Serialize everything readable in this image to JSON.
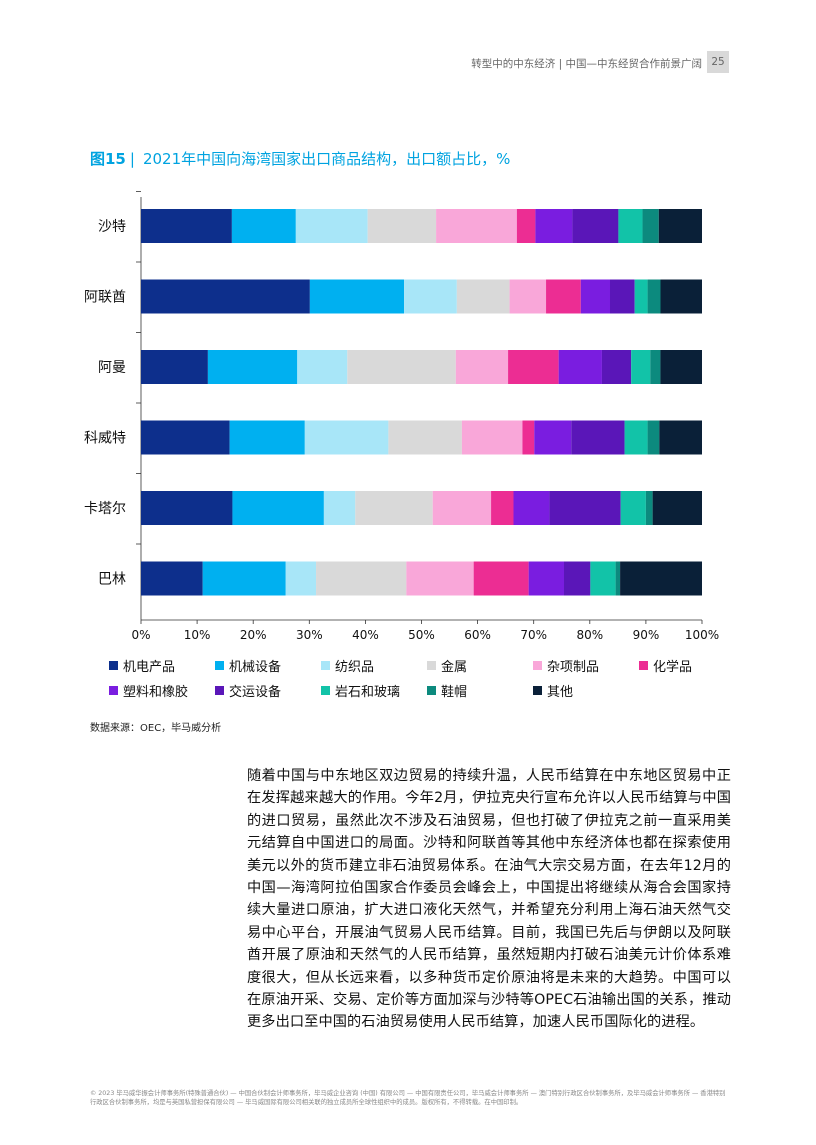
{
  "header": {
    "running_title": "转型中的中东经济 | 中国—中东经贸合作前景广阔",
    "page_number": "25"
  },
  "figure": {
    "label": "图15",
    "separator": "|",
    "title": "2021年中国向海湾国家出口商品结构，出口额占比，%"
  },
  "chart_data": {
    "type": "bar",
    "orientation": "horizontal",
    "stacked": true,
    "categories": [
      "沙特",
      "阿联酋",
      "阿曼",
      "科威特",
      "卡塔尔",
      "巴林"
    ],
    "xlim": [
      0,
      100
    ],
    "xticks": [
      "0%",
      "10%",
      "20%",
      "30%",
      "40%",
      "50%",
      "60%",
      "70%",
      "80%",
      "90%",
      "100%"
    ],
    "grid": false,
    "legend_position": "bottom",
    "series": [
      {
        "name": "机电产品",
        "color": "#0d2f8c",
        "values": [
          16.2,
          30.1,
          11.9,
          15.8,
          16.3,
          11.0
        ]
      },
      {
        "name": "机械设备",
        "color": "#00b0f0",
        "values": [
          11.4,
          16.8,
          15.9,
          13.4,
          16.3,
          14.8
        ]
      },
      {
        "name": "纺织品",
        "color": "#a8e6f8",
        "values": [
          12.8,
          9.4,
          8.9,
          14.9,
          5.6,
          5.4
        ]
      },
      {
        "name": "金属",
        "color": "#d9d9d9",
        "values": [
          12.2,
          9.4,
          19.3,
          13.1,
          13.8,
          16.1
        ]
      },
      {
        "name": "杂项制品",
        "color": "#f9a7d9",
        "values": [
          14.4,
          6.5,
          9.3,
          10.8,
          10.4,
          12.0
        ]
      },
      {
        "name": "化学品",
        "color": "#ec2d93",
        "values": [
          3.3,
          6.2,
          9.0,
          2.1,
          4.0,
          9.8
        ]
      },
      {
        "name": "塑料和橡胶",
        "color": "#7a1de0",
        "values": [
          6.6,
          5.2,
          7.7,
          6.6,
          6.4,
          6.3
        ]
      },
      {
        "name": "交运设备",
        "color": "#5a16b8",
        "values": [
          8.2,
          4.4,
          5.2,
          9.5,
          12.7,
          4.7
        ]
      },
      {
        "name": "岩石和玻璃",
        "color": "#12c3a8",
        "values": [
          4.3,
          2.3,
          3.4,
          4.1,
          4.5,
          4.5
        ]
      },
      {
        "name": "鞋帽",
        "color": "#0c8a7e",
        "values": [
          2.9,
          2.3,
          1.8,
          2.1,
          1.2,
          0.8
        ]
      },
      {
        "name": "其他",
        "color": "#0a2038",
        "values": [
          7.7,
          7.4,
          7.4,
          7.6,
          8.8,
          14.6
        ]
      }
    ]
  },
  "source": "数据来源：OEC，毕马威分析",
  "body_text": "随着中国与中东地区双边贸易的持续升温，人民币结算在中东地区贸易中正在发挥越来越大的作用。今年2月，伊拉克央行宣布允许以人民币结算与中国的进口贸易，虽然此次不涉及石油贸易，但也打破了伊拉克之前一直采用美元结算自中国进口的局面。沙特和阿联酋等其他中东经济体也都在探索使用美元以外的货币建立非石油贸易体系。在油气大宗交易方面，在去年12月的中国—海湾阿拉伯国家合作委员会峰会上，中国提出将继续从海合会国家持续大量进口原油，扩大进口液化天然气，并希望充分利用上海石油天然气交易中心平台，开展油气贸易人民币结算。目前，我国已先后与伊朗以及阿联酋开展了原油和天然气的人民币结算，虽然短期内打破石油美元计价体系难度很大，但从长远来看，以多种货币定价原油将是未来的大趋势。中国可以在原油开采、交易、定价等方面加深与沙特等OPEC石油输出国的关系，推动更多出口至中国的石油贸易使用人民币结算，加速人民币国际化的进程。",
  "footer": "© 2023 毕马威华振会计师事务所(特殊普通合伙) — 中国合伙制会计师事务所，毕马威企业咨询 (中国) 有限公司 — 中国有限责任公司，毕马威会计师事务所 — 澳门特别行政区合伙制事务所，及毕马威会计师事务所 — 香港特别行政区合伙制事务所，均是与英国私营担保有限公司 — 毕马威国际有限公司相关联的独立成员所全球性组织中的成员。版权所有，不得转载。在中国印制。"
}
